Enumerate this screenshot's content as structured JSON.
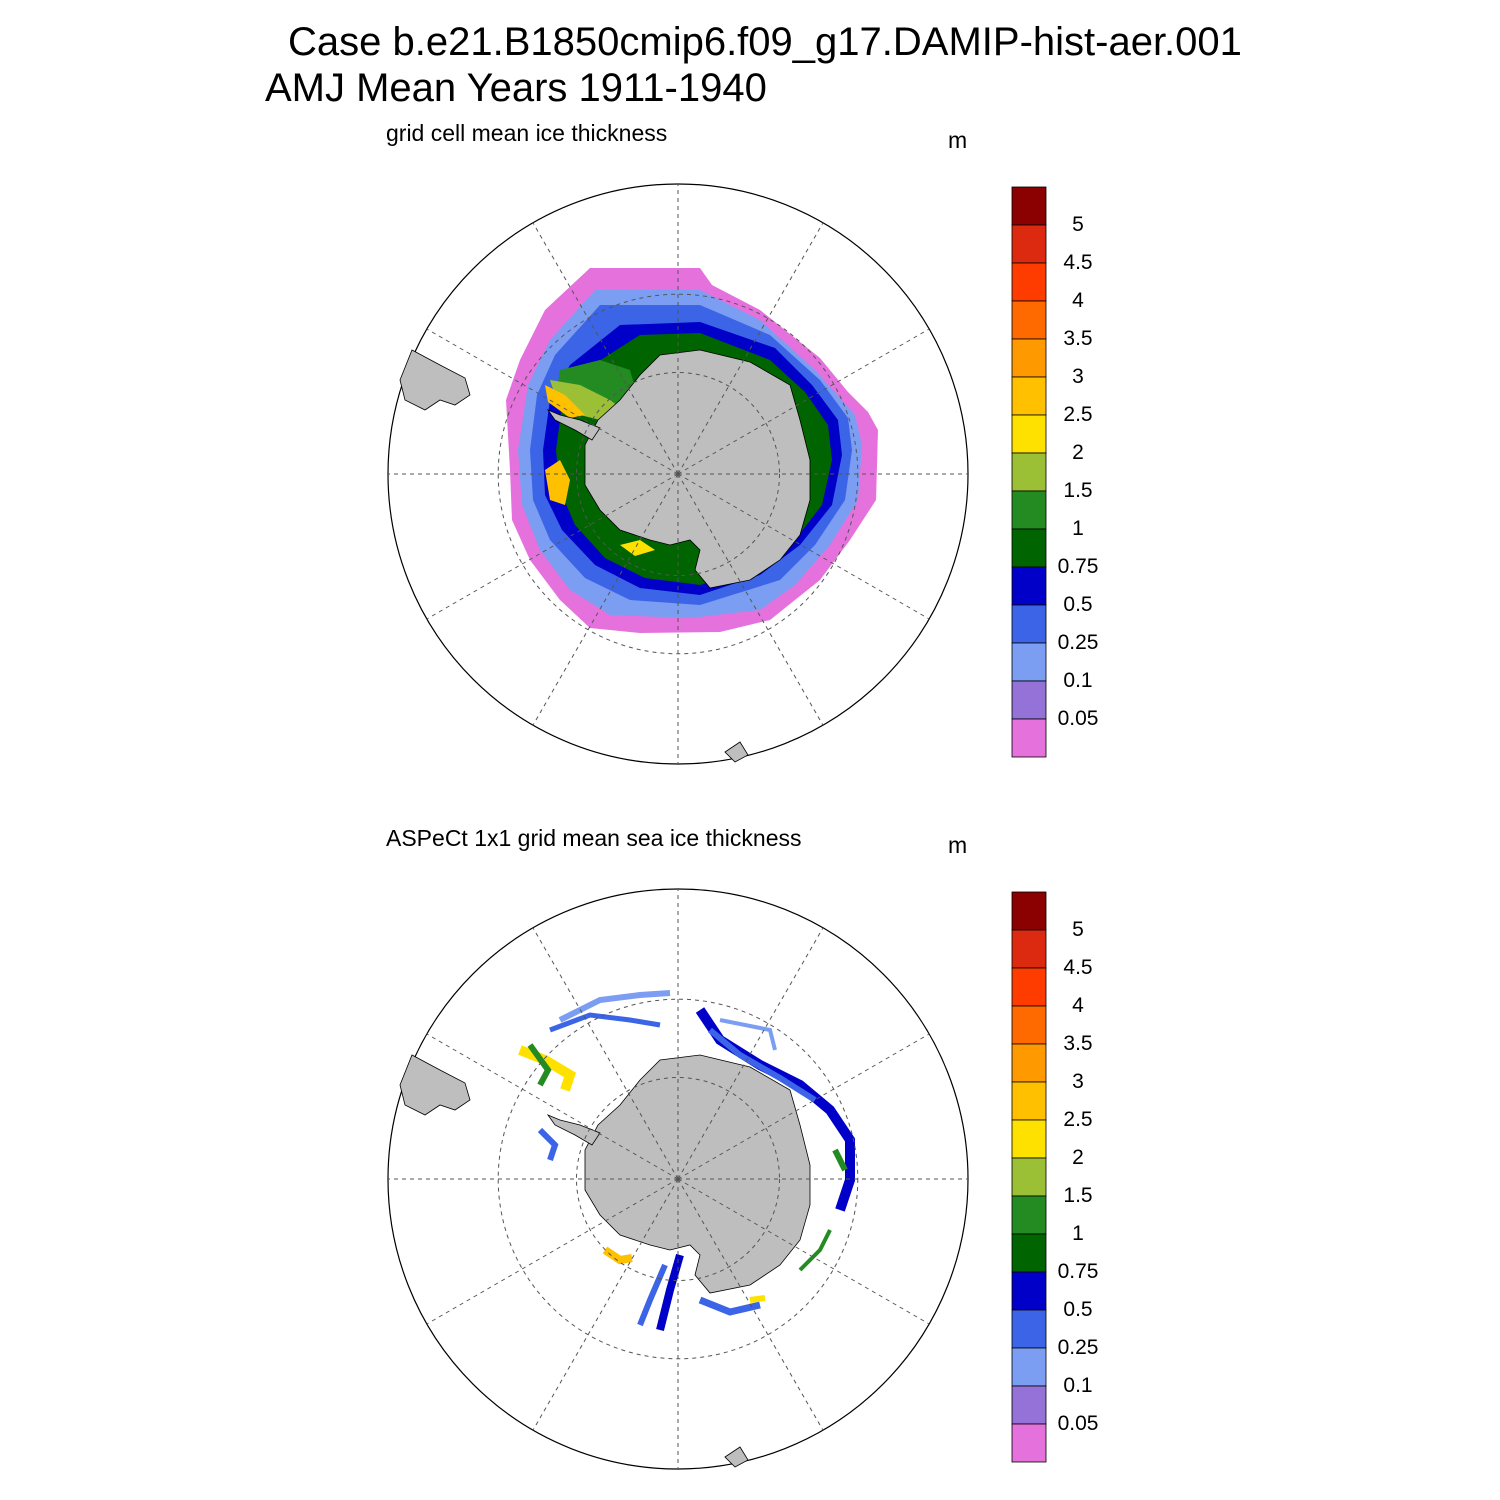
{
  "title": {
    "line1": "Case b.e21.B1850cmip6.f09_g17.DAMIP-hist-aer.001",
    "line2": "AMJ Mean   Years 1911-1940"
  },
  "colorbar": {
    "units": "m",
    "levels": [
      "5",
      "4.5",
      "4",
      "3.5",
      "3",
      "2.5",
      "2",
      "1.5",
      "1",
      "0.75",
      "0.5",
      "0.25",
      "0.1",
      "0.05"
    ],
    "colors": [
      "#8b0000",
      "#dc2a10",
      "#ff3c00",
      "#ff6a00",
      "#ff9900",
      "#ffc000",
      "#ffe100",
      "#9bbf35",
      "#238b22",
      "#006400",
      "#0000c8",
      "#3c64e6",
      "#7b9ef2",
      "#9472d8",
      "#e572dc"
    ]
  },
  "colors": {
    "land": "#bebebe",
    "no_data": "#ffffff",
    "grid": "#555555"
  },
  "panels": [
    {
      "id": "model",
      "label": "grid cell mean ice thickness",
      "units": "m"
    },
    {
      "id": "obs",
      "label": "ASPeCt 1x1 grid mean sea ice thickness",
      "units": "m"
    }
  ]
}
